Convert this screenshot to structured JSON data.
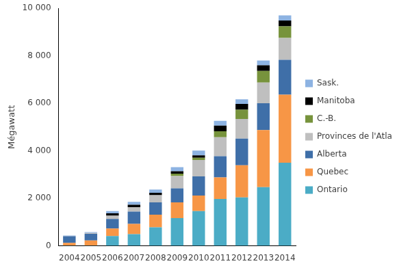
{
  "chart_data": {
    "type": "bar",
    "stacked": true,
    "grid": false,
    "legend": "right",
    "y_label": "Mégawatt",
    "categories": [
      "2004",
      "2005",
      "2006",
      "2007",
      "2008",
      "2009",
      "2010",
      "2011",
      "2012",
      "2013",
      "2014"
    ],
    "ylim": [
      0,
      10000
    ],
    "yticks": [
      0,
      {
        "value": 2000,
        "label": "2 000"
      },
      {
        "value": 4000,
        "label": "4 000"
      },
      {
        "value": 6000,
        "label": "6 000"
      },
      {
        "value": 8000,
        "label": "8 000"
      },
      {
        "value": 10000,
        "label": "10 000"
      }
    ],
    "series": [
      {
        "name": "Ontario",
        "color": "#4bacc6",
        "values": [
          15,
          15,
          410,
          490,
          780,
          1170,
          1460,
          1970,
          2040,
          2470,
          3500
        ]
      },
      {
        "name": "Quebec",
        "color": "#f79646",
        "values": [
          110,
          210,
          320,
          430,
          530,
          660,
          660,
          910,
          1350,
          2400,
          2860
        ]
      },
      {
        "name": "Alberta",
        "color": "#3f6fa8",
        "values": [
          280,
          280,
          400,
          520,
          520,
          590,
          800,
          890,
          1120,
          1130,
          1470
        ]
      },
      {
        "name": "Provinces de l'Atlantique",
        "color": "#bfbfbf",
        "values": [
          10,
          40,
          140,
          190,
          300,
          520,
          690,
          800,
          830,
          870,
          920
        ]
      },
      {
        "name": "C.-B.",
        "color": "#77933c",
        "values": [
          0,
          0,
          0,
          0,
          0,
          100,
          100,
          250,
          390,
          490,
          490
        ]
      },
      {
        "name": "Manitoba",
        "color": "#000000",
        "values": [
          0,
          0,
          100,
          100,
          100,
          100,
          100,
          240,
          240,
          240,
          240
        ]
      },
      {
        "name": "Sask.",
        "color": "#8db3e2",
        "values": [
          20,
          35,
          90,
          120,
          140,
          170,
          200,
          200,
          200,
          200,
          220
        ]
      }
    ]
  }
}
